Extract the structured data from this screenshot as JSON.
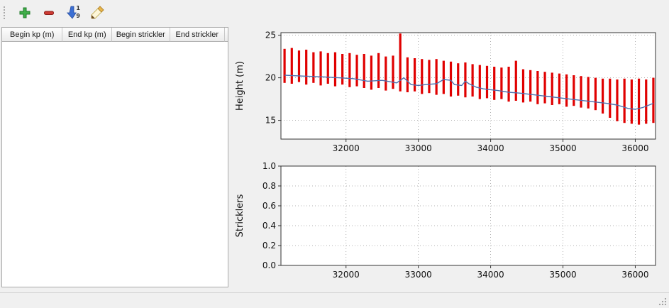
{
  "toolbar": {
    "buttons": [
      {
        "name": "add-row",
        "icon": "plus-icon"
      },
      {
        "name": "remove-row",
        "icon": "minus-icon"
      },
      {
        "name": "sort",
        "icon": "sort-numeric-down-icon"
      },
      {
        "name": "edit",
        "icon": "edit-pencil-icon"
      }
    ],
    "sort_top": "1",
    "sort_bottom": "9"
  },
  "table": {
    "columns": [
      "Begin kp (m)",
      "End kp (m)",
      "Begin strickler",
      "End strickler"
    ],
    "rows": []
  },
  "colors": {
    "bar_red": "#e00000",
    "line_blue": "#4c72b0",
    "grid": "#9a9a9a",
    "spine": "#333333"
  },
  "chart_data": [
    {
      "type": "bar",
      "name": "height-profile",
      "title": "",
      "xlabel": "",
      "ylabel": "Height (m)",
      "xlim": [
        31100,
        36280
      ],
      "ylim": [
        12.8,
        25.3
      ],
      "xticks": [
        32000,
        33000,
        34000,
        35000,
        36000
      ],
      "xtick_labels": [
        "32000",
        "33000",
        "34000",
        "35000",
        "36000"
      ],
      "yticks": [
        15,
        20,
        25
      ],
      "ytick_labels": [
        "15",
        "20",
        "25"
      ],
      "grid": true,
      "legend": false,
      "bar_color": "#e00000",
      "line_color": "#4c72b0",
      "bars": [
        [
          31150,
          19.4,
          23.4
        ],
        [
          31250,
          19.3,
          23.5
        ],
        [
          31350,
          19.5,
          23.2
        ],
        [
          31450,
          19.2,
          23.3
        ],
        [
          31550,
          19.4,
          23.0
        ],
        [
          31650,
          19.1,
          23.1
        ],
        [
          31750,
          19.3,
          22.9
        ],
        [
          31850,
          19.0,
          23.0
        ],
        [
          31950,
          19.2,
          22.8
        ],
        [
          32050,
          18.9,
          22.9
        ],
        [
          32150,
          19.0,
          22.7
        ],
        [
          32250,
          18.8,
          22.8
        ],
        [
          32350,
          18.6,
          22.6
        ],
        [
          32450,
          18.8,
          22.9
        ],
        [
          32550,
          18.5,
          22.5
        ],
        [
          32650,
          18.7,
          22.6
        ],
        [
          32750,
          18.4,
          25.2
        ],
        [
          32850,
          18.3,
          22.4
        ],
        [
          32950,
          18.4,
          22.3
        ],
        [
          33050,
          18.1,
          22.2
        ],
        [
          33150,
          18.2,
          22.1
        ],
        [
          33250,
          18.0,
          22.2
        ],
        [
          33350,
          18.1,
          22.0
        ],
        [
          33450,
          17.8,
          21.9
        ],
        [
          33550,
          17.9,
          21.7
        ],
        [
          33650,
          17.7,
          21.8
        ],
        [
          33750,
          17.8,
          21.6
        ],
        [
          33850,
          17.5,
          21.5
        ],
        [
          33950,
          17.6,
          21.4
        ],
        [
          34050,
          17.4,
          21.3
        ],
        [
          34150,
          17.5,
          21.2
        ],
        [
          34250,
          17.2,
          21.3
        ],
        [
          34350,
          17.3,
          22.0
        ],
        [
          34450,
          17.1,
          21.0
        ],
        [
          34550,
          17.2,
          20.9
        ],
        [
          34650,
          16.9,
          20.8
        ],
        [
          34750,
          17.0,
          20.7
        ],
        [
          34850,
          16.8,
          20.6
        ],
        [
          34950,
          16.9,
          20.5
        ],
        [
          35050,
          16.6,
          20.4
        ],
        [
          35150,
          16.7,
          20.3
        ],
        [
          35250,
          16.5,
          20.2
        ],
        [
          35350,
          16.4,
          20.1
        ],
        [
          35450,
          16.2,
          20.0
        ],
        [
          35550,
          15.8,
          19.9
        ],
        [
          35650,
          15.3,
          19.9
        ],
        [
          35750,
          14.9,
          19.8
        ],
        [
          35850,
          14.7,
          19.9
        ],
        [
          35950,
          14.6,
          19.8
        ],
        [
          36050,
          14.5,
          19.9
        ],
        [
          36150,
          14.6,
          19.8
        ],
        [
          36250,
          14.7,
          20.0
        ]
      ],
      "line": [
        [
          31150,
          20.3
        ],
        [
          31400,
          20.2
        ],
        [
          31700,
          20.1
        ],
        [
          31900,
          20.0
        ],
        [
          32100,
          19.9
        ],
        [
          32300,
          19.6
        ],
        [
          32500,
          19.7
        ],
        [
          32700,
          19.4
        ],
        [
          32800,
          20.0
        ],
        [
          32900,
          19.2
        ],
        [
          33000,
          19.1
        ],
        [
          33100,
          19.2
        ],
        [
          33250,
          19.3
        ],
        [
          33350,
          19.8
        ],
        [
          33450,
          19.7
        ],
        [
          33500,
          19.2
        ],
        [
          33600,
          19.1
        ],
        [
          33650,
          19.6
        ],
        [
          33700,
          19.3
        ],
        [
          33800,
          18.9
        ],
        [
          33900,
          18.7
        ],
        [
          34000,
          18.6
        ],
        [
          34100,
          18.5
        ],
        [
          34250,
          18.3
        ],
        [
          34400,
          18.2
        ],
        [
          34600,
          18.0
        ],
        [
          34800,
          17.8
        ],
        [
          35000,
          17.6
        ],
        [
          35200,
          17.4
        ],
        [
          35400,
          17.2
        ],
        [
          35600,
          17.0
        ],
        [
          35750,
          16.8
        ],
        [
          35900,
          16.4
        ],
        [
          36000,
          16.3
        ],
        [
          36100,
          16.5
        ],
        [
          36250,
          17.0
        ]
      ]
    },
    {
      "type": "line",
      "name": "stricklers",
      "title": "",
      "xlabel": "",
      "ylabel": "Stricklers",
      "xlim": [
        31100,
        36280
      ],
      "ylim": [
        0.0,
        1.0
      ],
      "xticks": [
        32000,
        33000,
        34000,
        35000,
        36000
      ],
      "xtick_labels": [
        "32000",
        "33000",
        "34000",
        "35000",
        "36000"
      ],
      "yticks": [
        0.0,
        0.2,
        0.4,
        0.6,
        0.8,
        1.0
      ],
      "ytick_labels": [
        "0.0",
        "0.2",
        "0.4",
        "0.6",
        "0.8",
        "1.0"
      ],
      "grid": true,
      "legend": false,
      "bars": [],
      "line": []
    }
  ]
}
